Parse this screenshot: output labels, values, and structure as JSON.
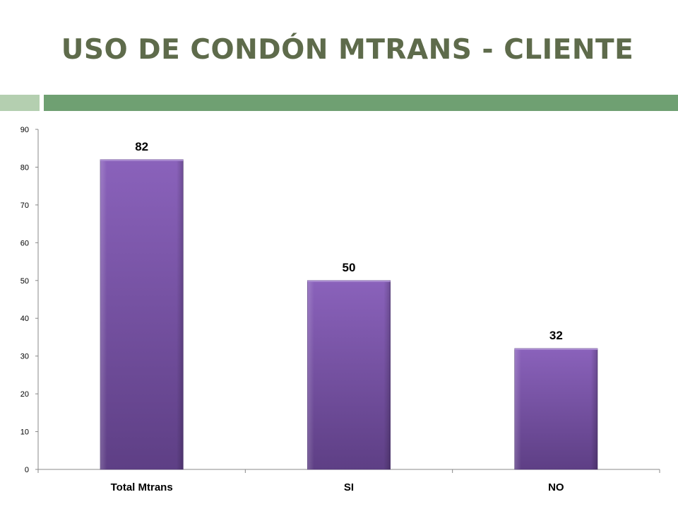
{
  "slide": {
    "title": "USO DE CONDÓN MTRANS - CLIENTE",
    "rule_colors": {
      "short": "#b4cfb0",
      "long": "#6fa072"
    }
  },
  "chart_data": {
    "type": "bar",
    "title": "",
    "xlabel": "",
    "ylabel": "",
    "categories": [
      "Total Mtrans",
      "SI",
      "NO"
    ],
    "values": [
      82,
      50,
      32
    ],
    "data_labels": [
      "82",
      "50",
      "32"
    ],
    "ylim": [
      0,
      90
    ],
    "yticks": [
      0,
      10,
      20,
      30,
      40,
      50,
      60,
      70,
      80,
      90
    ],
    "grid": false,
    "legend": "none",
    "bar_color_top": "#8a62bb",
    "bar_color_bottom": "#5e3f85"
  }
}
